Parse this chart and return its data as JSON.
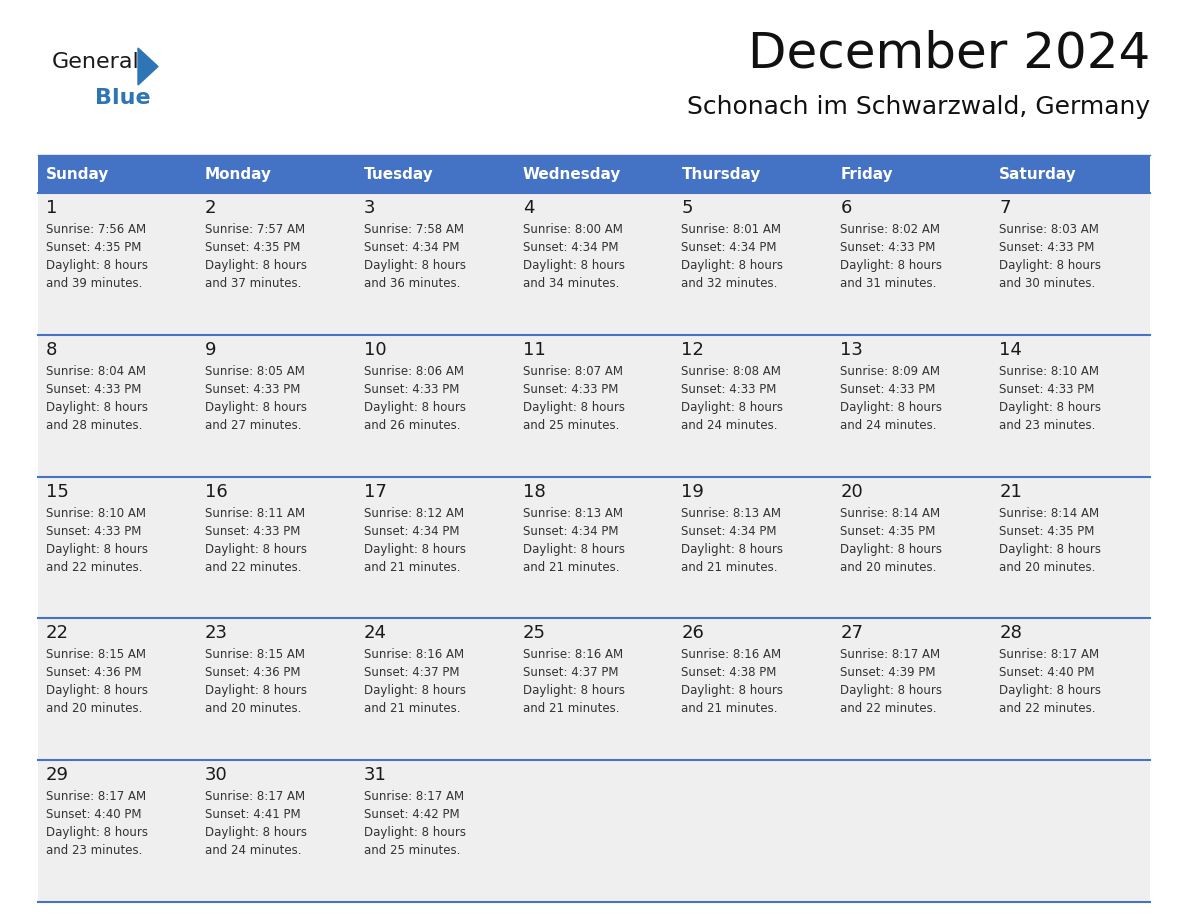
{
  "title": "December 2024",
  "subtitle": "Schonach im Schwarzwald, Germany",
  "header_color": "#4472C4",
  "header_text_color": "#FFFFFF",
  "bg_color": "#FFFFFF",
  "row_bg_color": "#EFEFEF",
  "border_color": "#4472C4",
  "days_of_week": [
    "Sunday",
    "Monday",
    "Tuesday",
    "Wednesday",
    "Thursday",
    "Friday",
    "Saturday"
  ],
  "logo_general_color": "#1a1a1a",
  "logo_blue_color": "#2E75B6",
  "text_color": "#333333",
  "day_num_color": "#1a1a1a",
  "calendar_data": [
    [
      {
        "day": 1,
        "sunrise": "7:56 AM",
        "sunset": "4:35 PM",
        "daylight_hours": 8,
        "daylight_minutes": 39
      },
      {
        "day": 2,
        "sunrise": "7:57 AM",
        "sunset": "4:35 PM",
        "daylight_hours": 8,
        "daylight_minutes": 37
      },
      {
        "day": 3,
        "sunrise": "7:58 AM",
        "sunset": "4:34 PM",
        "daylight_hours": 8,
        "daylight_minutes": 36
      },
      {
        "day": 4,
        "sunrise": "8:00 AM",
        "sunset": "4:34 PM",
        "daylight_hours": 8,
        "daylight_minutes": 34
      },
      {
        "day": 5,
        "sunrise": "8:01 AM",
        "sunset": "4:34 PM",
        "daylight_hours": 8,
        "daylight_minutes": 32
      },
      {
        "day": 6,
        "sunrise": "8:02 AM",
        "sunset": "4:33 PM",
        "daylight_hours": 8,
        "daylight_minutes": 31
      },
      {
        "day": 7,
        "sunrise": "8:03 AM",
        "sunset": "4:33 PM",
        "daylight_hours": 8,
        "daylight_minutes": 30
      }
    ],
    [
      {
        "day": 8,
        "sunrise": "8:04 AM",
        "sunset": "4:33 PM",
        "daylight_hours": 8,
        "daylight_minutes": 28
      },
      {
        "day": 9,
        "sunrise": "8:05 AM",
        "sunset": "4:33 PM",
        "daylight_hours": 8,
        "daylight_minutes": 27
      },
      {
        "day": 10,
        "sunrise": "8:06 AM",
        "sunset": "4:33 PM",
        "daylight_hours": 8,
        "daylight_minutes": 26
      },
      {
        "day": 11,
        "sunrise": "8:07 AM",
        "sunset": "4:33 PM",
        "daylight_hours": 8,
        "daylight_minutes": 25
      },
      {
        "day": 12,
        "sunrise": "8:08 AM",
        "sunset": "4:33 PM",
        "daylight_hours": 8,
        "daylight_minutes": 24
      },
      {
        "day": 13,
        "sunrise": "8:09 AM",
        "sunset": "4:33 PM",
        "daylight_hours": 8,
        "daylight_minutes": 24
      },
      {
        "day": 14,
        "sunrise": "8:10 AM",
        "sunset": "4:33 PM",
        "daylight_hours": 8,
        "daylight_minutes": 23
      }
    ],
    [
      {
        "day": 15,
        "sunrise": "8:10 AM",
        "sunset": "4:33 PM",
        "daylight_hours": 8,
        "daylight_minutes": 22
      },
      {
        "day": 16,
        "sunrise": "8:11 AM",
        "sunset": "4:33 PM",
        "daylight_hours": 8,
        "daylight_minutes": 22
      },
      {
        "day": 17,
        "sunrise": "8:12 AM",
        "sunset": "4:34 PM",
        "daylight_hours": 8,
        "daylight_minutes": 21
      },
      {
        "day": 18,
        "sunrise": "8:13 AM",
        "sunset": "4:34 PM",
        "daylight_hours": 8,
        "daylight_minutes": 21
      },
      {
        "day": 19,
        "sunrise": "8:13 AM",
        "sunset": "4:34 PM",
        "daylight_hours": 8,
        "daylight_minutes": 21
      },
      {
        "day": 20,
        "sunrise": "8:14 AM",
        "sunset": "4:35 PM",
        "daylight_hours": 8,
        "daylight_minutes": 20
      },
      {
        "day": 21,
        "sunrise": "8:14 AM",
        "sunset": "4:35 PM",
        "daylight_hours": 8,
        "daylight_minutes": 20
      }
    ],
    [
      {
        "day": 22,
        "sunrise": "8:15 AM",
        "sunset": "4:36 PM",
        "daylight_hours": 8,
        "daylight_minutes": 20
      },
      {
        "day": 23,
        "sunrise": "8:15 AM",
        "sunset": "4:36 PM",
        "daylight_hours": 8,
        "daylight_minutes": 20
      },
      {
        "day": 24,
        "sunrise": "8:16 AM",
        "sunset": "4:37 PM",
        "daylight_hours": 8,
        "daylight_minutes": 21
      },
      {
        "day": 25,
        "sunrise": "8:16 AM",
        "sunset": "4:37 PM",
        "daylight_hours": 8,
        "daylight_minutes": 21
      },
      {
        "day": 26,
        "sunrise": "8:16 AM",
        "sunset": "4:38 PM",
        "daylight_hours": 8,
        "daylight_minutes": 21
      },
      {
        "day": 27,
        "sunrise": "8:17 AM",
        "sunset": "4:39 PM",
        "daylight_hours": 8,
        "daylight_minutes": 22
      },
      {
        "day": 28,
        "sunrise": "8:17 AM",
        "sunset": "4:40 PM",
        "daylight_hours": 8,
        "daylight_minutes": 22
      }
    ],
    [
      {
        "day": 29,
        "sunrise": "8:17 AM",
        "sunset": "4:40 PM",
        "daylight_hours": 8,
        "daylight_minutes": 23
      },
      {
        "day": 30,
        "sunrise": "8:17 AM",
        "sunset": "4:41 PM",
        "daylight_hours": 8,
        "daylight_minutes": 24
      },
      {
        "day": 31,
        "sunrise": "8:17 AM",
        "sunset": "4:42 PM",
        "daylight_hours": 8,
        "daylight_minutes": 25
      },
      null,
      null,
      null,
      null
    ]
  ]
}
